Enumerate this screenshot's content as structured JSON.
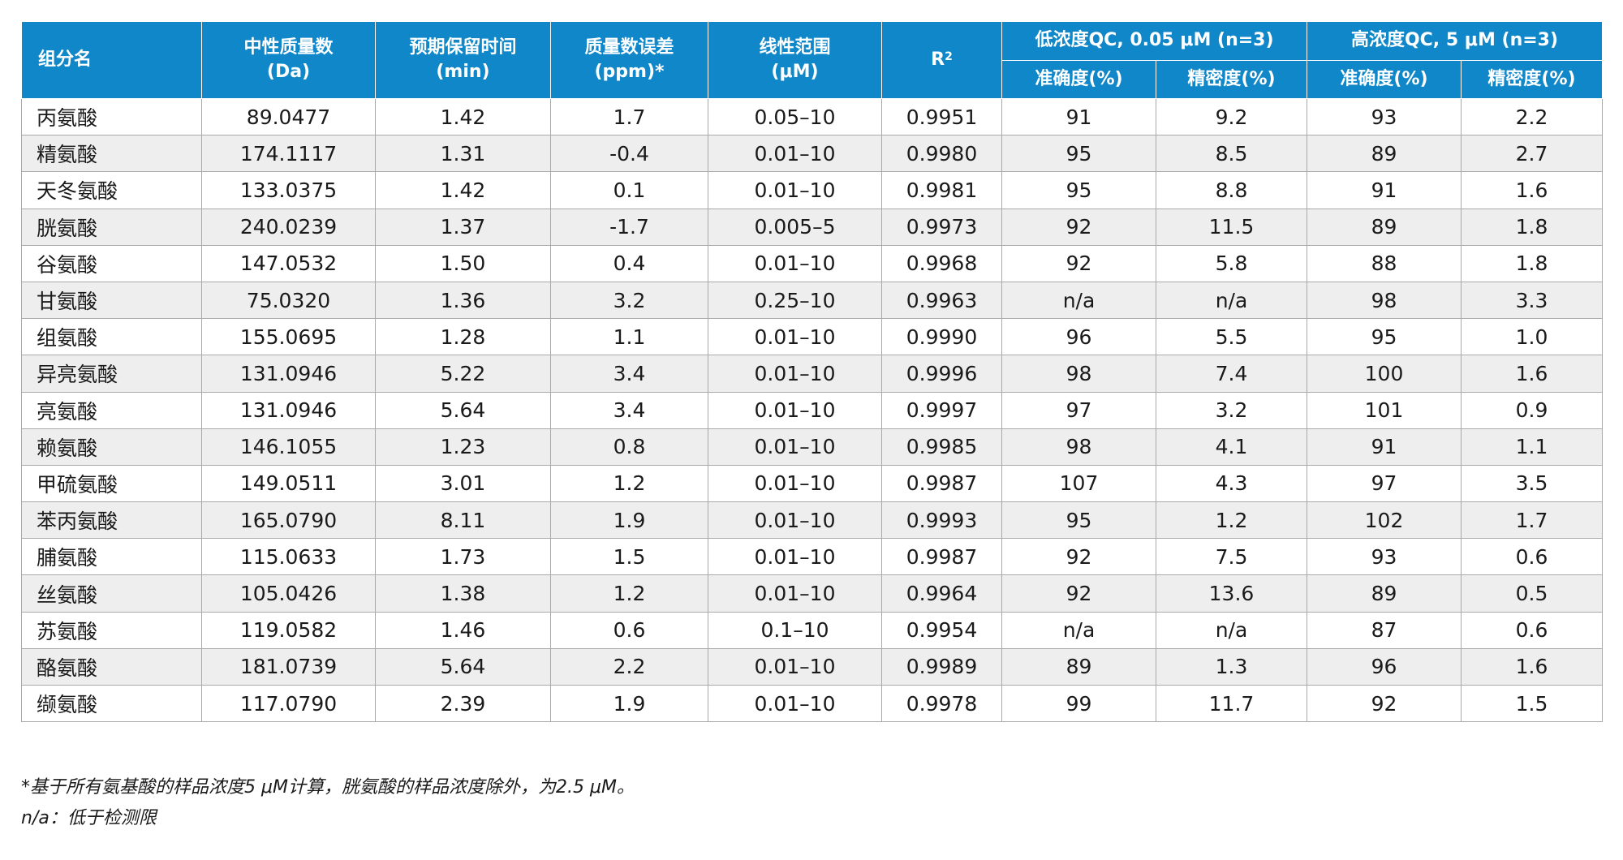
{
  "header": {
    "component": "组分名",
    "neutral_mass": [
      "中性质量数",
      "(Da)"
    ],
    "rt": [
      "预期保留时间",
      "(min)"
    ],
    "mass_error": [
      "质量数误差",
      "(ppm)*"
    ],
    "linear_range": [
      "线性范围",
      "(μM)"
    ],
    "r2_base": "R",
    "r2_sup": "2",
    "low_qc": "低浓度QC, 0.05 μM (n=3)",
    "high_qc": "高浓度QC, 5 μM (n=3)",
    "accuracy": "准确度(%)",
    "precision": "精密度(%)"
  },
  "rows": [
    [
      "丙氨酸",
      "89.0477",
      "1.42",
      "1.7",
      "0.05–10",
      "0.9951",
      "91",
      "9.2",
      "93",
      "2.2"
    ],
    [
      "精氨酸",
      "174.1117",
      "1.31",
      "-0.4",
      "0.01–10",
      "0.9980",
      "95",
      "8.5",
      "89",
      "2.7"
    ],
    [
      "天冬氨酸",
      "133.0375",
      "1.42",
      "0.1",
      "0.01–10",
      "0.9981",
      "95",
      "8.8",
      "91",
      "1.6"
    ],
    [
      "胱氨酸",
      "240.0239",
      "1.37",
      "-1.7",
      "0.005–5",
      "0.9973",
      "92",
      "11.5",
      "89",
      "1.8"
    ],
    [
      "谷氨酸",
      "147.0532",
      "1.50",
      "0.4",
      "0.01–10",
      "0.9968",
      "92",
      "5.8",
      "88",
      "1.8"
    ],
    [
      "甘氨酸",
      "75.0320",
      "1.36",
      "3.2",
      "0.25–10",
      "0.9963",
      "n/a",
      "n/a",
      "98",
      "3.3"
    ],
    [
      "组氨酸",
      "155.0695",
      "1.28",
      "1.1",
      "0.01–10",
      "0.9990",
      "96",
      "5.5",
      "95",
      "1.0"
    ],
    [
      "异亮氨酸",
      "131.0946",
      "5.22",
      "3.4",
      "0.01–10",
      "0.9996",
      "98",
      "7.4",
      "100",
      "1.6"
    ],
    [
      "亮氨酸",
      "131.0946",
      "5.64",
      "3.4",
      "0.01–10",
      "0.9997",
      "97",
      "3.2",
      "101",
      "0.9"
    ],
    [
      "赖氨酸",
      "146.1055",
      "1.23",
      "0.8",
      "0.01–10",
      "0.9985",
      "98",
      "4.1",
      "91",
      "1.1"
    ],
    [
      "甲硫氨酸",
      "149.0511",
      "3.01",
      "1.2",
      "0.01–10",
      "0.9987",
      "107",
      "4.3",
      "97",
      "3.5"
    ],
    [
      "苯丙氨酸",
      "165.0790",
      "8.11",
      "1.9",
      "0.01–10",
      "0.9993",
      "95",
      "1.2",
      "102",
      "1.7"
    ],
    [
      "脯氨酸",
      "115.0633",
      "1.73",
      "1.5",
      "0.01–10",
      "0.9987",
      "92",
      "7.5",
      "93",
      "0.6"
    ],
    [
      "丝氨酸",
      "105.0426",
      "1.38",
      "1.2",
      "0.01–10",
      "0.9964",
      "92",
      "13.6",
      "89",
      "0.5"
    ],
    [
      "苏氨酸",
      "119.0582",
      "1.46",
      "0.6",
      "0.1–10",
      "0.9954",
      "n/a",
      "n/a",
      "87",
      "0.6"
    ],
    [
      "酪氨酸",
      "181.0739",
      "5.64",
      "2.2",
      "0.01–10",
      "0.9989",
      "89",
      "1.3",
      "96",
      "1.6"
    ],
    [
      "缬氨酸",
      "117.0790",
      "2.39",
      "1.9",
      "0.01–10",
      "0.9978",
      "99",
      "11.7",
      "92",
      "1.5"
    ]
  ],
  "footnotes": {
    "note1": "*基于所有氨基酸的样品浓度5 μM计算，胱氨酸的样品浓度除外，为2.5 μM。",
    "note2": "n/a：低于检测限"
  }
}
